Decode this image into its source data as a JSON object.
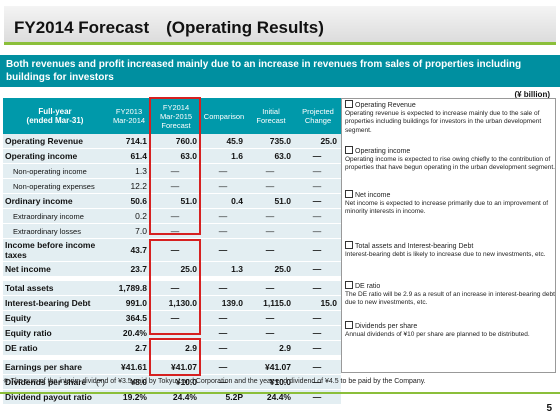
{
  "title": "FY2014 Forecast　(Operating Results)",
  "banner": "Both revenues and profit increased mainly due to an increase in revenues from sales of properties including buildings for investors",
  "unit": "(¥ billion)",
  "headers": {
    "label": "Full-year\n(ended Mar-31)",
    "fy2013": "FY2013\nMar-2014",
    "fy2014": "FY2014\nMar-2015\nForecast",
    "comparison": "Comparison",
    "initial": "Initial\nForecast",
    "change": "Projected\nChange"
  },
  "rows": [
    {
      "label": "Operating Revenue",
      "fy2013": "714.1",
      "fy2014": "760.0",
      "comparison": "45.9",
      "initial": "735.0",
      "change": "25.0"
    },
    {
      "label": "Operating income",
      "fy2013": "61.4",
      "fy2014": "63.0",
      "comparison": "1.6",
      "initial": "63.0",
      "change": "—"
    },
    {
      "label": "Non-operating income",
      "fy2013": "1.3",
      "fy2014": "—",
      "comparison": "—",
      "initial": "—",
      "change": "—"
    },
    {
      "label": "Non-operating expenses",
      "fy2013": "12.2",
      "fy2014": "—",
      "comparison": "—",
      "initial": "—",
      "change": "—"
    },
    {
      "label": "Ordinary income",
      "fy2013": "50.6",
      "fy2014": "51.0",
      "comparison": "0.4",
      "initial": "51.0",
      "change": "—"
    },
    {
      "label": "Extraordinary income",
      "fy2013": "0.2",
      "fy2014": "—",
      "comparison": "—",
      "initial": "—",
      "change": "—"
    },
    {
      "label": "Extraordinary losses",
      "fy2013": "7.0",
      "fy2014": "—",
      "comparison": "—",
      "initial": "—",
      "change": "—"
    },
    {
      "label": "Income before income taxes",
      "fy2013": "43.7",
      "fy2014": "—",
      "comparison": "—",
      "initial": "—",
      "change": "—"
    },
    {
      "label": "Net income",
      "fy2013": "23.7",
      "fy2014": "25.0",
      "comparison": "1.3",
      "initial": "25.0",
      "change": "—"
    },
    {
      "label": "Total assets",
      "fy2013": "1,789.8",
      "fy2014": "—",
      "comparison": "—",
      "initial": "—",
      "change": "—"
    },
    {
      "label": "Interest-bearing Debt",
      "fy2013": "991.0",
      "fy2014": "1,130.0",
      "comparison": "139.0",
      "initial": "1,115.0",
      "change": "15.0"
    },
    {
      "label": "Equity",
      "fy2013": "364.5",
      "fy2014": "—",
      "comparison": "—",
      "initial": "—",
      "change": "—"
    },
    {
      "label": "Equity ratio",
      "fy2013": "20.4%",
      "fy2014": "—",
      "comparison": "—",
      "initial": "—",
      "change": "—"
    },
    {
      "label": "DE ratio",
      "fy2013": "2.7",
      "fy2014": "2.9",
      "comparison": "—",
      "initial": "2.9",
      "change": "—"
    },
    {
      "label": "Earnings per share",
      "fy2013": "¥41.61",
      "fy2014": "¥41.07",
      "comparison": "—",
      "initial": "¥41.07",
      "change": "—"
    },
    {
      "label": "Dividends per share",
      "marker": "(*)",
      "fy2013": "¥8.0",
      "fy2014": "¥10.0",
      "comparison": "—",
      "initial": "¥10.0",
      "change": "—"
    },
    {
      "label": "Dividend payout ratio",
      "fy2013": "19.2%",
      "fy2014": "24.4%",
      "comparison": "5.2P",
      "initial": "24.4%",
      "change": "—"
    }
  ],
  "notes": [
    {
      "heading": "Operating Revenue",
      "text": "Operating revenue is expected to increase mainly due to the sale of properties including buildings for investors in the urban development segment."
    },
    {
      "heading": "Operating income",
      "text": "Operating income is expected to rise owing chiefly to the contribution of properties that have begun operating in the urban development segment."
    },
    {
      "heading": "Net income",
      "text": "Net income is expected to increase primarily due to an improvement of minority interests in income."
    },
    {
      "heading": "Total assets and Interest-bearing Debt",
      "text": "Interest-bearing debt is likely to increase due to new investments, etc."
    },
    {
      "heading": "DE ratio",
      "text": "The DE ratio will be 2.9 as a result of an increase in interest-bearing debt due to new investments, etc."
    },
    {
      "heading": "Dividends per share",
      "text": "Annual dividends of ¥10 per share are planned to be distributed."
    }
  ],
  "footnote": "※ The sum of the interim dividend of ¥3.5 paid by Tokyu Land Corporation and the year-end dividend of ¥4.5 to be paid by the Company.",
  "page_number": "5"
}
